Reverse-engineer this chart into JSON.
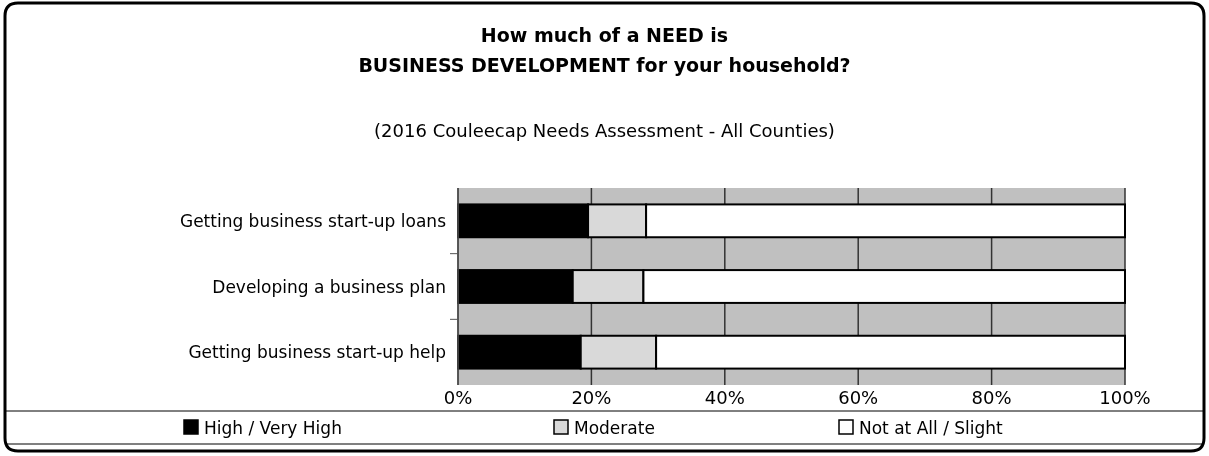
{
  "chart_data": {
    "type": "bar",
    "orientation": "horizontal",
    "stacked": true,
    "title": "How much of a NEED is\nBUSINESS DEVELOPMENT for your household?",
    "subtitle": "(2016 Couleecap Needs Assessment  - All Counties)",
    "categories": [
      "Getting business start-up loans",
      "Developing a business plan",
      "Getting business start-up help"
    ],
    "series": [
      {
        "name": "High / Very High",
        "color": "#000000",
        "values": [
          19.5,
          17.2,
          18.4
        ]
      },
      {
        "name": "Moderate",
        "color": "#d9d9d9",
        "values": [
          8.7,
          10.6,
          11.3
        ]
      },
      {
        "name": "Not at All / Slight",
        "color": "#ffffff",
        "values": [
          71.8,
          72.2,
          70.3
        ]
      }
    ],
    "xlim": [
      0,
      100
    ],
    "xticks": [
      {
        "value": 0,
        "label": "0%"
      },
      {
        "value": 20,
        "label": "20%"
      },
      {
        "value": 40,
        "label": "40%"
      },
      {
        "value": 60,
        "label": "60%"
      },
      {
        "value": 80,
        "label": "80%"
      },
      {
        "value": 100,
        "label": "100%"
      }
    ],
    "grid": "x",
    "legend": "bottom"
  }
}
